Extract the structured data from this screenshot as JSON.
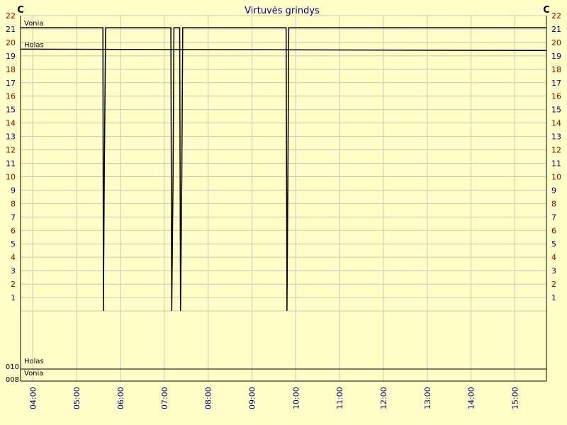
{
  "chart_data": {
    "type": "line",
    "title": "Virtuvės grindys",
    "unit_left": "C",
    "unit_right": "C",
    "y_ticks": [
      "1",
      "2",
      "3",
      "4",
      "5",
      "6",
      "7",
      "8",
      "9",
      "10",
      "11",
      "12",
      "13",
      "14",
      "15",
      "16",
      "17",
      "18",
      "19",
      "20",
      "21",
      "22"
    ],
    "ylim": [
      0,
      22
    ],
    "x_ticks": [
      "04:00",
      "05:00",
      "06:00",
      "07:00",
      "08:00",
      "09:00",
      "10:00",
      "11:00",
      "12:00",
      "13:00",
      "14:00",
      "15:00"
    ],
    "xlim_hours": [
      3.72,
      15.72
    ],
    "grid": true,
    "line_labels": [
      "Vonia",
      "Holas"
    ],
    "series": [
      {
        "name": "Vonia",
        "points": [
          [
            3.72,
            21.1
          ],
          [
            5.6,
            21.1
          ],
          [
            5.61,
            0.0
          ],
          [
            5.63,
            10.0
          ],
          [
            5.66,
            21.1
          ],
          [
            7.15,
            21.1
          ],
          [
            7.17,
            0.0
          ],
          [
            7.2,
            10.0
          ],
          [
            7.22,
            21.1
          ],
          [
            7.35,
            21.1
          ],
          [
            7.37,
            0.0
          ],
          [
            7.4,
            10.0
          ],
          [
            7.42,
            21.1
          ],
          [
            9.78,
            21.1
          ],
          [
            9.8,
            0.0
          ],
          [
            9.82,
            10.0
          ],
          [
            9.84,
            21.1
          ],
          [
            15.72,
            21.1
          ]
        ]
      },
      {
        "name": "Holas",
        "points": [
          [
            3.72,
            19.5
          ],
          [
            15.72,
            19.4
          ]
        ]
      }
    ],
    "lower_panel": {
      "labels_top": "Holas",
      "labels_bottom": "Vonia",
      "tick_upper": "010",
      "tick_lower": "008"
    },
    "colors": {
      "background": "#ffffc8",
      "grid": "#c8c8b4",
      "series_line": "#000000",
      "y_tick_odd": "#000080",
      "y_tick_even": "#a00000",
      "x_tick": "#000080",
      "title": "#000080"
    }
  }
}
